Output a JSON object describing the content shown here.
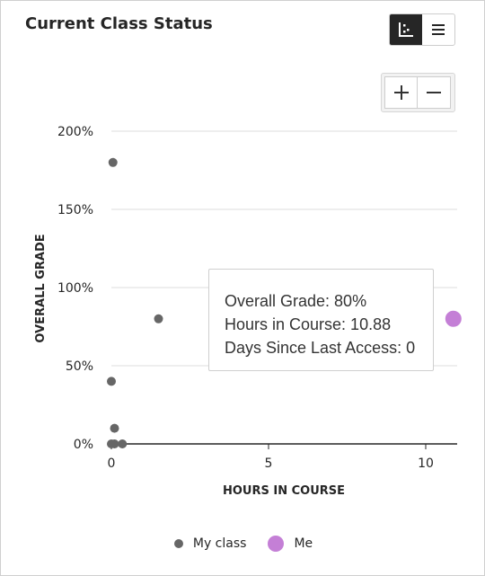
{
  "title": "Current Class Status",
  "toolbar": {
    "chart_view_icon": "scatter-chart-icon",
    "list_view_icon": "list-icon",
    "zoom_in_icon": "plus-icon",
    "zoom_out_icon": "minus-icon"
  },
  "colors": {
    "class_points": "#666666",
    "me_point": "#c47fd6",
    "axis": "#262626",
    "grid": "#dcdcdc"
  },
  "tooltip": {
    "grade_line": "Overall Grade: 80%",
    "hours_line": "Hours in Course: 10.88",
    "days_line": "Days Since Last Access: 0"
  },
  "chart_data": {
    "type": "scatter",
    "title": "",
    "xlabel": "HOURS IN COURSE",
    "ylabel": "OVERALL GRADE",
    "xlim": [
      0,
      11
    ],
    "ylim": [
      0,
      200
    ],
    "x_ticks": [
      0,
      5,
      10
    ],
    "y_ticks": [
      0,
      50,
      100,
      150,
      200
    ],
    "y_tick_labels": [
      "0%",
      "50%",
      "100%",
      "150%",
      "200%"
    ],
    "grid": true,
    "legend_position": "bottom",
    "series": [
      {
        "name": "My class",
        "points": [
          {
            "x": 0.05,
            "y": 180
          },
          {
            "x": 1.5,
            "y": 80
          },
          {
            "x": 0.0,
            "y": 40
          },
          {
            "x": 0.1,
            "y": 10
          },
          {
            "x": 0.0,
            "y": 0
          },
          {
            "x": 0.1,
            "y": 0
          },
          {
            "x": 0.35,
            "y": 0
          }
        ]
      },
      {
        "name": "Me",
        "points": [
          {
            "x": 10.88,
            "y": 80
          }
        ]
      }
    ]
  }
}
